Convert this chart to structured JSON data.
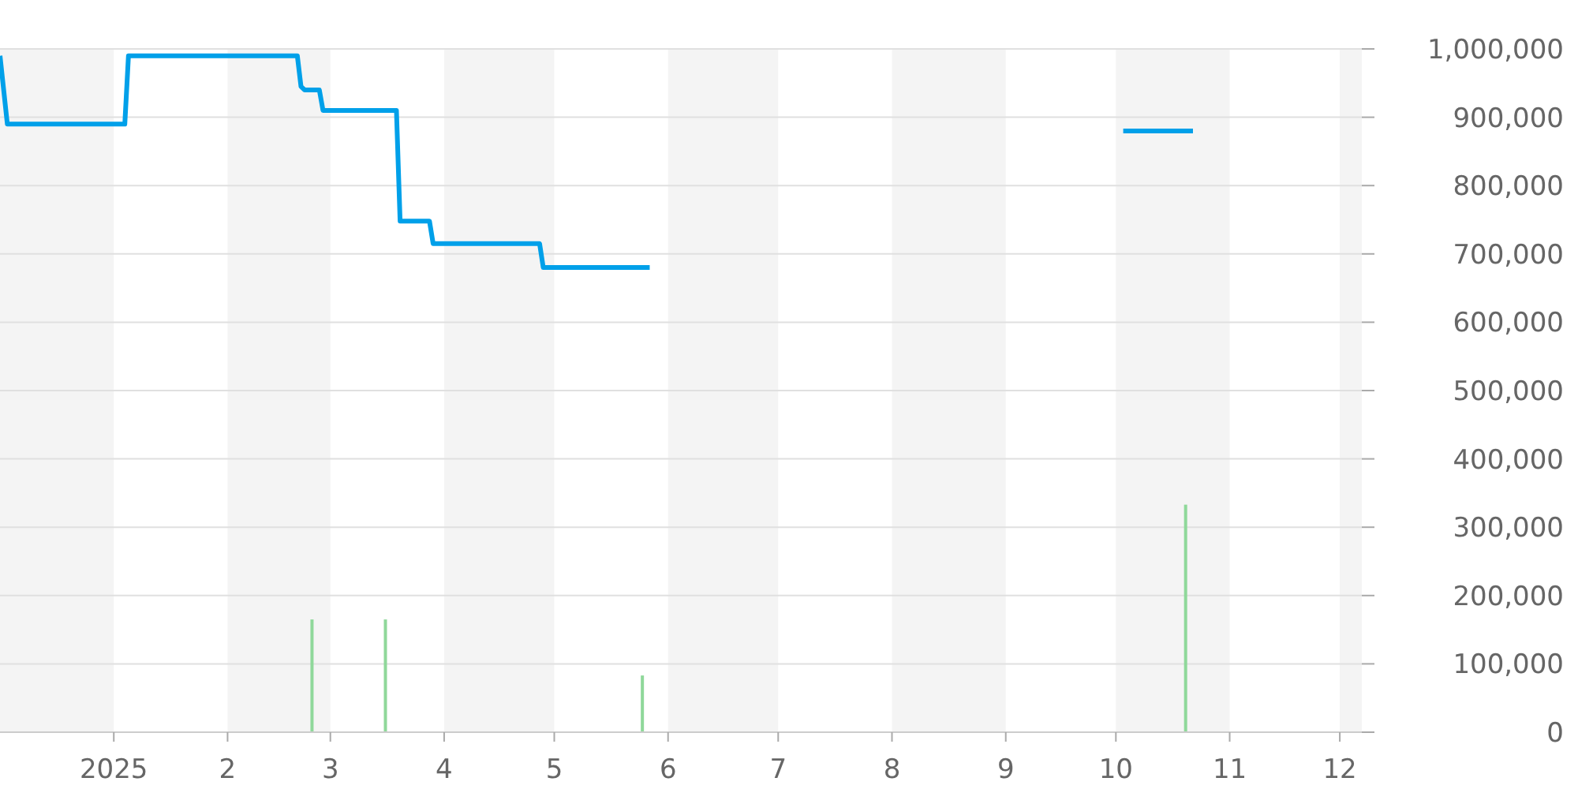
{
  "chart_data": {
    "type": "line",
    "xlim": [
      "2024-12-01",
      "2025-12-07"
    ],
    "xticks": [
      {
        "value": "2025-01-01",
        "label": "2025"
      },
      {
        "value": "2025-02-01",
        "label": "2"
      },
      {
        "value": "2025-03-01",
        "label": "3"
      },
      {
        "value": "2025-04-01",
        "label": "4"
      },
      {
        "value": "2025-05-01",
        "label": "5"
      },
      {
        "value": "2025-06-01",
        "label": "6"
      },
      {
        "value": "2025-07-01",
        "label": "7"
      },
      {
        "value": "2025-08-01",
        "label": "8"
      },
      {
        "value": "2025-09-01",
        "label": "9"
      },
      {
        "value": "2025-10-01",
        "label": "10"
      },
      {
        "value": "2025-11-01",
        "label": "11"
      },
      {
        "value": "2025-12-01",
        "label": "12"
      }
    ],
    "ylim": [
      0,
      1000000
    ],
    "yticks": [
      0,
      {
        "value": 100000,
        "label": "100,000"
      },
      {
        "value": 200000,
        "label": "200,000"
      },
      {
        "value": 300000,
        "label": "300,000"
      },
      {
        "value": 400000,
        "label": "400,000"
      },
      {
        "value": 500000,
        "label": "500,000"
      },
      {
        "value": 600000,
        "label": "600,000"
      },
      {
        "value": 700000,
        "label": "700,000"
      },
      {
        "value": 800000,
        "label": "800,000"
      },
      {
        "value": 900000,
        "label": "900,000"
      },
      {
        "value": 1000000,
        "label": "1,000,000"
      }
    ],
    "grid": "y",
    "bands": [
      {
        "axis": "x",
        "from": "2024-12-01",
        "to": "2025-01-01",
        "color": "#f4f4f4"
      },
      {
        "axis": "x",
        "from": "2025-02-01",
        "to": "2025-03-01",
        "color": "#f4f4f4"
      },
      {
        "axis": "x",
        "from": "2025-04-01",
        "to": "2025-05-01",
        "color": "#f4f4f4"
      },
      {
        "axis": "x",
        "from": "2025-06-01",
        "to": "2025-07-01",
        "color": "#f4f4f4"
      },
      {
        "axis": "x",
        "from": "2025-08-01",
        "to": "2025-09-01",
        "color": "#f4f4f4"
      },
      {
        "axis": "x",
        "from": "2025-10-01",
        "to": "2025-11-01",
        "color": "#f4f4f4"
      },
      {
        "axis": "x",
        "from": "2025-12-01",
        "to": "2025-12-07",
        "color": "#f4f4f4"
      }
    ],
    "series": [
      {
        "type": "bar",
        "color": "#8fd89a",
        "x": [
          "2025-02-24",
          "2025-03-16",
          "2025-05-25",
          "2025-10-20"
        ],
        "values": [
          165000,
          165000,
          83000,
          333000
        ]
      },
      {
        "color": "#00a0e9",
        "x": [
          "2024-12-01",
          "2024-12-03",
          "2025-01-04",
          "2025-01-05",
          "2025-02-20",
          "2025-02-21",
          "2025-02-22",
          "2025-02-26",
          "2025-02-27",
          "2025-03-19",
          "2025-03-20",
          "2025-03-28",
          "2025-03-29",
          "2025-04-27",
          "2025-04-28",
          "2025-05-27",
          "2025-07-15",
          "2025-10-03",
          "2025-10-22"
        ],
        "values": [
          990000,
          890000,
          890000,
          990000,
          990000,
          945000,
          940000,
          940000,
          910000,
          910000,
          748000,
          748000,
          715000,
          715000,
          680000,
          680000,
          null,
          880000,
          880000
        ]
      }
    ]
  }
}
